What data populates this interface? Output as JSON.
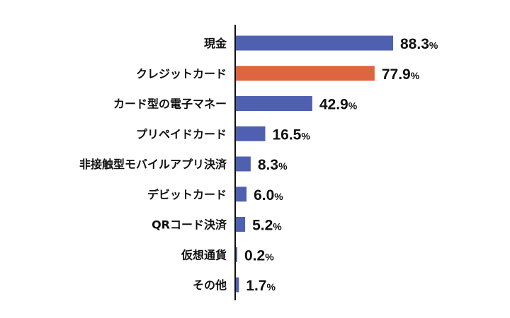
{
  "chart_data": {
    "type": "bar",
    "orientation": "horizontal",
    "title": "",
    "xlabel": "",
    "ylabel": "",
    "xlim": [
      0,
      100
    ],
    "grid": false,
    "unit": "%",
    "categories": [
      "現金",
      "クレジットカード",
      "カード型の電子マネー",
      "プリペイドカード",
      "非接触型モバイルアプリ決済",
      "デビットカード",
      "QRコード決済",
      "仮想通貨",
      "その他"
    ],
    "values": [
      88.3,
      77.9,
      42.9,
      16.5,
      8.3,
      6.0,
      5.2,
      0.2,
      1.7
    ],
    "value_labels": [
      "88.3",
      "77.9",
      "42.9",
      "16.5",
      "8.3",
      "6.0",
      "5.2",
      "0.2",
      "1.7"
    ],
    "highlight_index": 1,
    "colors": {
      "default": "#5060b0",
      "highlight": "#dd6640",
      "axis": "#111111"
    }
  }
}
